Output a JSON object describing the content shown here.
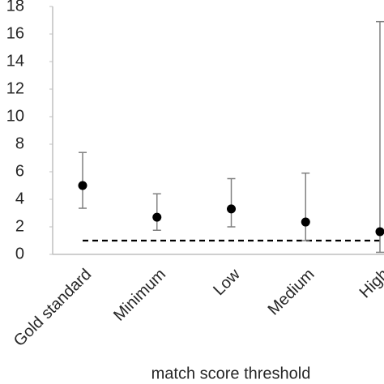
{
  "chart_data": {
    "type": "errorbar",
    "x_label": "match score threshold",
    "categories": [
      "Gold standard",
      "Minimum",
      "Low",
      "Medium",
      "High"
    ],
    "values": [
      5.0,
      2.7,
      3.3,
      2.35,
      1.65
    ],
    "lower": [
      3.35,
      1.75,
      2.0,
      1.0,
      0.15
    ],
    "upper": [
      7.4,
      4.4,
      5.5,
      5.9,
      16.9
    ],
    "color": "#000000",
    "error_color": "#808080",
    "reference_line": 1,
    "ylim": [
      0,
      18
    ],
    "yticks": [
      0,
      2,
      4,
      6,
      8,
      10,
      12,
      14,
      16,
      18
    ],
    "grid": false
  }
}
